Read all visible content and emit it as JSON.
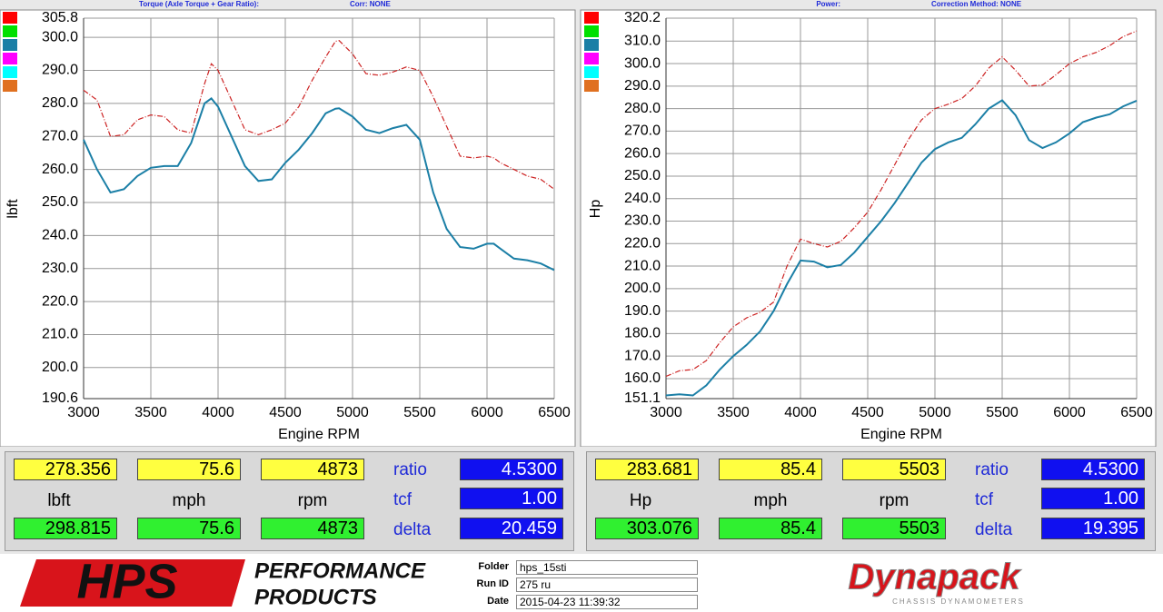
{
  "chart_data": [
    {
      "type": "line",
      "header": "Torque (Axle Torque + Gear Ratio):",
      "header2": "Corr: NONE",
      "y_label": "lbft",
      "x_label": "Engine RPM",
      "x": [
        3000,
        3100,
        3200,
        3300,
        3400,
        3500,
        3600,
        3700,
        3800,
        3900,
        3950,
        4000,
        4100,
        4200,
        4300,
        4400,
        4500,
        4600,
        4700,
        4800,
        4873,
        4900,
        5000,
        5100,
        5200,
        5300,
        5400,
        5500,
        5600,
        5700,
        5800,
        5900,
        6000,
        6050,
        6100,
        6200,
        6300,
        6400,
        6500
      ],
      "series": [
        {
          "color": "#cc2222",
          "style": "dashdot",
          "values": [
            284,
            281,
            270,
            270.5,
            275,
            276.5,
            276,
            272,
            271,
            286,
            292,
            290,
            281,
            272,
            270.5,
            272,
            274,
            279,
            287,
            294,
            298.8,
            299,
            295,
            289,
            288.5,
            289.5,
            291,
            290,
            282,
            273,
            264,
            263.5,
            264,
            263.5,
            262,
            260,
            258,
            257,
            254
          ]
        },
        {
          "color": "#1b7fa6",
          "style": "solid",
          "values": [
            269,
            260,
            253,
            254,
            258,
            260.5,
            261,
            261,
            268,
            280,
            281.5,
            279,
            270,
            261,
            256.5,
            257,
            262,
            266,
            271,
            277,
            278.4,
            278.5,
            276,
            272,
            271,
            272.5,
            273.5,
            269,
            253,
            242,
            236.5,
            236,
            237.5,
            237.5,
            236,
            233,
            232.5,
            231.5,
            229.5
          ]
        }
      ],
      "xlim": [
        3000,
        6500
      ],
      "xticks": [
        3000,
        3500,
        4000,
        4500,
        5000,
        5500,
        6000,
        6500
      ],
      "ylim": [
        190.6,
        305.8
      ],
      "yticks": [
        190.6,
        {
          "value": 200,
          "label": "200.0"
        },
        {
          "value": 210,
          "label": "210.0"
        },
        {
          "value": 220,
          "label": "220.0"
        },
        {
          "value": 230,
          "label": "230.0"
        },
        {
          "value": 240,
          "label": "240.0"
        },
        {
          "value": 250,
          "label": "250.0"
        },
        {
          "value": 260,
          "label": "260.0"
        },
        {
          "value": 270,
          "label": "270.0"
        },
        {
          "value": 280,
          "label": "280.0"
        },
        {
          "value": 290,
          "label": "290.0"
        },
        {
          "value": 300,
          "label": "300.0"
        },
        305.8
      ],
      "grid": true
    },
    {
      "type": "line",
      "header": "Power:",
      "header2": "Correction Method: NONE",
      "y_label": "Hp",
      "x_label": "Engine RPM",
      "x": [
        3000,
        3100,
        3200,
        3300,
        3400,
        3500,
        3600,
        3700,
        3800,
        3900,
        4000,
        4100,
        4200,
        4300,
        4400,
        4500,
        4600,
        4700,
        4800,
        4900,
        5000,
        5100,
        5200,
        5300,
        5400,
        5500,
        5600,
        5700,
        5800,
        5900,
        6000,
        6100,
        6200,
        6300,
        6400,
        6500
      ],
      "series": [
        {
          "color": "#cc2222",
          "style": "dashdot",
          "values": [
            161,
            163.5,
            164,
            168,
            176,
            183,
            187,
            189.5,
            194,
            210,
            222,
            220,
            218.5,
            221,
            227,
            234,
            244,
            255,
            266,
            275,
            280,
            282,
            284.5,
            290,
            298,
            303,
            297,
            290,
            290.5,
            295,
            300,
            303,
            305,
            308,
            312,
            314.5
          ]
        },
        {
          "color": "#1b7fa6",
          "style": "solid",
          "values": [
            152.5,
            153,
            152.5,
            157,
            164,
            170,
            175,
            181,
            190,
            202,
            212.5,
            212,
            209.5,
            210.5,
            216,
            223,
            230,
            238,
            247,
            256,
            262,
            265,
            267,
            273,
            280,
            283.7,
            277,
            266,
            262.5,
            265,
            269,
            274,
            276,
            277.5,
            281,
            283.5
          ]
        }
      ],
      "xlim": [
        3000,
        6500
      ],
      "xticks": [
        3000,
        3500,
        4000,
        4500,
        5000,
        5500,
        6000,
        6500
      ],
      "ylim": [
        151.1,
        320.2
      ],
      "yticks": [
        151.1,
        {
          "value": 160,
          "label": "160.0"
        },
        {
          "value": 170,
          "label": "170.0"
        },
        {
          "value": 180,
          "label": "180.0"
        },
        {
          "value": 190,
          "label": "190.0"
        },
        {
          "value": 200,
          "label": "200.0"
        },
        {
          "value": 210,
          "label": "210.0"
        },
        {
          "value": 220,
          "label": "220.0"
        },
        {
          "value": 230,
          "label": "230.0"
        },
        {
          "value": 240,
          "label": "240.0"
        },
        {
          "value": 250,
          "label": "250.0"
        },
        {
          "value": 260,
          "label": "260.0"
        },
        {
          "value": 270,
          "label": "270.0"
        },
        {
          "value": 280,
          "label": "280.0"
        },
        {
          "value": 290,
          "label": "290.0"
        },
        {
          "value": 300,
          "label": "300.0"
        },
        {
          "value": 310,
          "label": "310.0"
        },
        320.2
      ],
      "grid": true
    }
  ],
  "readouts": [
    {
      "top": [
        "278.356",
        "75.6",
        "4873"
      ],
      "units": [
        "lbft",
        "mph",
        "rpm"
      ],
      "bottom": [
        "298.815",
        "75.6",
        "4873"
      ],
      "params": [
        {
          "label": "ratio",
          "value": "4.5300"
        },
        {
          "label": "tcf",
          "value": "1.00"
        },
        {
          "label": "delta",
          "value": "20.459"
        }
      ]
    },
    {
      "top": [
        "283.681",
        "85.4",
        "5503"
      ],
      "units": [
        "Hp",
        "mph",
        "rpm"
      ],
      "bottom": [
        "303.076",
        "85.4",
        "5503"
      ],
      "params": [
        {
          "label": "ratio",
          "value": "4.5300"
        },
        {
          "label": "tcf",
          "value": "1.00"
        },
        {
          "label": "delta",
          "value": "19.395"
        }
      ]
    }
  ],
  "footer": {
    "logo": {
      "mark": "HPS",
      "line1": "PERFORMANCE",
      "line2": "PRODUCTS"
    },
    "fields": [
      {
        "label": "Folder",
        "value": "hps_15sti"
      },
      {
        "label": "Run ID",
        "value": "275 ru"
      },
      {
        "label": "Date",
        "value": "2015-04-23 11:39:32"
      }
    ],
    "brand": {
      "name": "Dynapack",
      "tagline": "CHASSIS DYNAMOMETERS"
    }
  }
}
